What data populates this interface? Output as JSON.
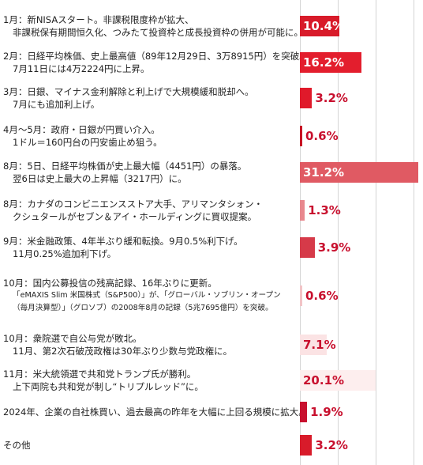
{
  "chart_data": {
    "type": "bar",
    "orientation": "horizontal",
    "grid": true,
    "value_suffix": "%",
    "rows": [
      {
        "lines": [
          "1月：新NISAスタート。非課税限度枠が拡大、",
          "非課税保有期間恒久化、つみたて投資枠と成長投資枠の併用が可能に。"
        ],
        "value": 10.4,
        "value_label": "10.4%",
        "color": "#d81b2a"
      },
      {
        "lines": [
          "2月：日経平均株価、史上最高値（89年12月29日、3万8915円）を突破。",
          "7月11日には4万2224円に上昇。"
        ],
        "value": 16.2,
        "value_label": "16.2%",
        "color": "#e31e2d"
      },
      {
        "lines": [
          "3月：日銀、マイナス金利解除と利上げで大規模緩和脱却へ。",
          "7月にも追加利上げ。"
        ],
        "value": 3.2,
        "value_label": "3.2%",
        "color": "#e0192a"
      },
      {
        "lines": [
          "4月～5月：政府・日銀が円買い介入。",
          "1ドル＝160円台の円安歯止め狙う。"
        ],
        "value": 0.6,
        "value_label": "0.6%",
        "color": "#c81425"
      },
      {
        "lines": [
          "8月：5日、日経平均株価が史上最大幅（4451円）の暴落。",
          "翌6日は史上最大の上昇幅（3217円）に。"
        ],
        "value": 31.2,
        "value_label": "31.2%",
        "color": "#e05a63"
      },
      {
        "lines": [
          "8月：カナダのコンビニエンスストア大手、アリマンタシォン・",
          "クシュタールがセブン＆アイ・ホールディングに買収提案。"
        ],
        "value": 1.3,
        "value_label": "1.3%",
        "color": "#e8878d"
      },
      {
        "lines": [
          "9月：米金融政策、4年半ぶり緩和転換。9月0.5%利下げ。",
          "11月0.25%追加利下げ。"
        ],
        "value": 3.9,
        "value_label": "3.9%",
        "color": "#d63a49"
      },
      {
        "lines": [
          "10月：国内公募投信の残高記録、16年ぶりに更新。",
          "「eMAXIS Slim 米国株式（S&P500）」が、「グローバル・ソブリン・オープン",
          "（毎月決算型）」（グロソブ）の2008年8月の記録（5兆7695億円）を突破。"
        ],
        "value": 0.6,
        "value_label": "0.6%",
        "color": "#f2c4c7",
        "small_tail": true
      },
      {
        "lines": [
          "10月：衆院選で自公与党が敗北。",
          "11月、第2次石破茂政権は30年ぶり少数与党政権に。"
        ],
        "value": 7.1,
        "value_label": "7.1%",
        "color": "#fbe3e4"
      },
      {
        "lines": [
          "11月：米大統領選で共和党トランプ氏が勝利。",
          "上下両院も共和党が制し“トリプルレッド”に。"
        ],
        "value": 20.1,
        "value_label": "20.1%",
        "color": "#fdeeee"
      },
      {
        "lines": [
          "2024年、企業の自社株買い、過去最高の昨年を大幅に上回る規模に拡大。"
        ],
        "value": 1.9,
        "value_label": "1.9%",
        "color": "#c8102e"
      },
      {
        "lines": [
          "その他"
        ],
        "value": 3.2,
        "value_label": "3.2%",
        "color": "#d81b2a"
      }
    ]
  }
}
